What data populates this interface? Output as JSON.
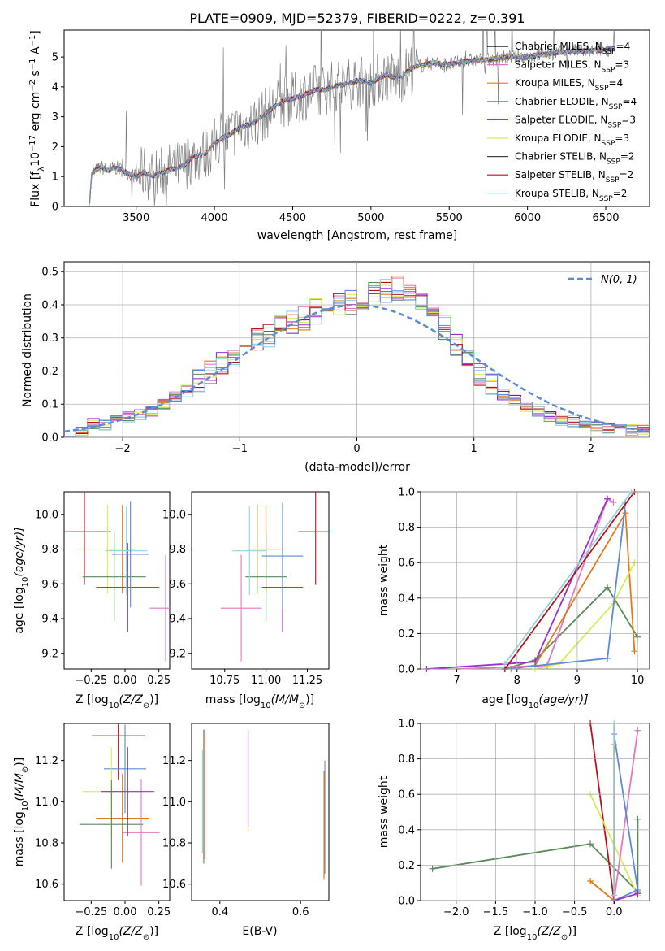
{
  "colors": {
    "Chabrier MILES": "#000000",
    "Salpeter MILES": "#e377c2",
    "Kroupa MILES": "#e07b1a",
    "Chabrier ELODIE": "#5a8a5a",
    "Salpeter ELODIE": "#9b30c8",
    "Kroupa ELODIE": "#d6ec55",
    "Chabrier STELIB": "#444444",
    "Salpeter STELIB": "#b5121b",
    "Kroupa STELIB": "#8fd3e0",
    "model_sum": "#5b8bd6",
    "spectrum": "#808080",
    "normal": "#5b8bd6"
  },
  "chart_data": [
    {
      "type": "line",
      "title": "PLATE=0909, MJD=52379, FIBERID=0222, z=0.391",
      "xlabel": "wavelength [Angstrom, rest frame]",
      "ylabel": "Flux [f",
      "ylabel_parts": [
        "Flux [f",
        "λ",
        "10",
        "−17",
        " erg cm",
        "−2",
        " s",
        "−1",
        " A",
        "−1",
        "]"
      ],
      "xlim": [
        3040,
        6780
      ],
      "ylim": [
        0,
        5.9
      ],
      "xticks": [
        3500,
        4000,
        4500,
        5000,
        5500,
        6000,
        6500
      ],
      "yticks": [
        0,
        1,
        2,
        3,
        4,
        5
      ],
      "legend_placement": "right",
      "legend": [
        {
          "name": "Chabrier MILES",
          "label": "Chabrier MILES, N",
          "sub": "SSP",
          "n": "=4"
        },
        {
          "name": "Salpeter MILES",
          "label": "Salpeter MILES, N",
          "sub": "SSP",
          "n": "=3"
        },
        {
          "name": "Kroupa MILES",
          "label": "Kroupa MILES, N",
          "sub": "SSP",
          "n": "=4"
        },
        {
          "name": "Chabrier ELODIE",
          "label": "Chabrier ELODIE, N",
          "sub": "SSP",
          "n": "=4"
        },
        {
          "name": "Salpeter ELODIE",
          "label": "Salpeter ELODIE, N",
          "sub": "SSP",
          "n": "=3"
        },
        {
          "name": "Kroupa ELODIE",
          "label": "Kroupa ELODIE, N",
          "sub": "SSP",
          "n": "=3"
        },
        {
          "name": "Chabrier STELIB",
          "label": "Chabrier STELIB, N",
          "sub": "SSP",
          "n": "=2"
        },
        {
          "name": "Salpeter STELIB",
          "label": "Salpeter STELIB, N",
          "sub": "SSP",
          "n": "=2"
        },
        {
          "name": "Kroupa STELIB",
          "label": "Kroupa STELIB, N",
          "sub": "SSP",
          "n": "=2"
        }
      ],
      "continuum": {
        "x": [
          3200,
          3215,
          3240,
          3280,
          3320,
          3360,
          3400,
          3450,
          3500,
          3550,
          3600,
          3650,
          3700,
          3750,
          3800,
          3850,
          3900,
          3950,
          4000,
          4050,
          4100,
          4150,
          4200,
          4250,
          4300,
          4350,
          4400,
          4450,
          4500,
          4550,
          4600,
          4650,
          4700,
          4750,
          4800,
          4850,
          4900,
          4950,
          5000,
          5050,
          5100,
          5150,
          5200,
          5250,
          5300,
          5400,
          5500,
          5600,
          5700,
          5800,
          5900,
          6000,
          6100,
          6200,
          6300,
          6400,
          6500,
          6560
        ],
        "y": [
          0,
          1.05,
          1.2,
          1.3,
          1.2,
          1.3,
          1.25,
          1.1,
          1.0,
          1.15,
          1.0,
          1.1,
          1.2,
          1.3,
          1.35,
          1.6,
          1.7,
          1.8,
          2.1,
          2.3,
          2.4,
          2.6,
          2.7,
          2.8,
          3.0,
          3.2,
          3.4,
          3.55,
          3.6,
          3.7,
          3.8,
          3.9,
          3.9,
          4.0,
          4.05,
          4.1,
          4.2,
          4.2,
          4.1,
          4.3,
          4.4,
          4.3,
          4.35,
          4.6,
          4.7,
          4.8,
          4.75,
          4.85,
          4.9,
          4.95,
          5.0,
          5.0,
          5.1,
          5.15,
          5.2,
          5.2,
          5.25,
          5.3
        ]
      }
    },
    {
      "type": "line",
      "xlabel": "(data-model)/error",
      "ylabel": "Normed distribution",
      "xlim": [
        -2.5,
        2.5
      ],
      "ylim": [
        0,
        0.53
      ],
      "xticks": [
        -2,
        -1,
        0,
        1,
        2
      ],
      "yticks": [
        0.0,
        0.1,
        0.2,
        0.3,
        0.4,
        0.5
      ],
      "legend": [
        {
          "name": "normal",
          "label": "N(0, 1)"
        }
      ],
      "grid": true,
      "histogram_centers": [
        -2.45,
        -2.35,
        -2.25,
        -2.15,
        -2.05,
        -1.95,
        -1.85,
        -1.75,
        -1.65,
        -1.55,
        -1.45,
        -1.35,
        -1.25,
        -1.15,
        -1.05,
        -0.95,
        -0.85,
        -0.75,
        -0.65,
        -0.55,
        -0.45,
        -0.35,
        -0.25,
        -0.15,
        -0.05,
        0.05,
        0.15,
        0.25,
        0.35,
        0.45,
        0.55,
        0.65,
        0.75,
        0.85,
        0.95,
        1.05,
        1.15,
        1.25,
        1.35,
        1.45,
        1.55,
        1.65,
        1.75,
        1.85,
        1.95,
        2.05,
        2.15,
        2.25,
        2.35,
        2.45
      ],
      "histogram_values": [
        0.02,
        0.02,
        0.04,
        0.04,
        0.05,
        0.06,
        0.07,
        0.08,
        0.1,
        0.12,
        0.14,
        0.17,
        0.2,
        0.23,
        0.25,
        0.28,
        0.3,
        0.31,
        0.33,
        0.35,
        0.36,
        0.38,
        0.4,
        0.4,
        0.41,
        0.42,
        0.43,
        0.44,
        0.45,
        0.44,
        0.42,
        0.38,
        0.33,
        0.28,
        0.23,
        0.19,
        0.16,
        0.13,
        0.11,
        0.09,
        0.08,
        0.06,
        0.05,
        0.05,
        0.04,
        0.03,
        0.03,
        0.03,
        0.02,
        0.02
      ]
    },
    {
      "type": "scatter",
      "xlabel": "Z [log",
      "xlabel_parts": [
        "Z [log",
        "10",
        "(Z/Z",
        "⊙",
        ")]"
      ],
      "ylabel": "age  [log",
      "ylabel_parts": [
        "age  [log",
        "10",
        "(age/yr)]"
      ],
      "xlim": [
        -0.45,
        0.33
      ],
      "ylim": [
        9.11,
        10.13
      ],
      "xticks": [
        -0.25,
        0.0,
        0.25
      ],
      "xticklabels": [
        "−0.25",
        "0.00",
        "0.25"
      ],
      "yticks": [
        9.2,
        9.4,
        9.6,
        9.8,
        10.0
      ],
      "crosses": [
        {
          "s": "Salpeter STELIB",
          "x": -0.3,
          "y": 9.9,
          "xe": 0.5,
          "ye": 0.6
        },
        {
          "s": "Kroupa ELODIE",
          "x": -0.13,
          "y": 9.8,
          "xe": 0.6,
          "ye": 0.5
        },
        {
          "s": "Kroupa MILES",
          "x": -0.02,
          "y": 9.8,
          "xe": 0.25,
          "ye": 0.5
        },
        {
          "s": "Chabrier ELODIE",
          "x": -0.08,
          "y": 9.64,
          "xe": 0.6,
          "ye": 0.5
        },
        {
          "s": "Salpeter ELODIE",
          "x": 0.02,
          "y": 9.58,
          "xe": 0.6,
          "ye": 0.5
        },
        {
          "s": "Salpeter MILES",
          "x": 0.3,
          "y": 9.46,
          "xe": 0.3,
          "ye": 0.6
        },
        {
          "s": "Kroupa STELIB",
          "x": 0.01,
          "y": 9.79,
          "xe": 0.4,
          "ye": 0.5
        },
        {
          "s": "model_sum",
          "x": 0.04,
          "y": 9.77,
          "xe": 0.35,
          "ye": 0.6
        }
      ]
    },
    {
      "type": "scatter",
      "xlabel": "mass [log",
      "xlabel_parts": [
        "mass [log",
        "10",
        "(M/M",
        "⊙",
        ")]"
      ],
      "xlim": [
        10.55,
        11.38
      ],
      "ylim": [
        9.11,
        10.13
      ],
      "xticks": [
        10.75,
        11.0,
        11.25
      ],
      "xticklabels": [
        "10.75",
        "11.00",
        "11.25"
      ],
      "yticks": [
        9.2,
        9.4,
        9.6,
        9.8,
        10.0
      ],
      "crosses": [
        {
          "s": "Salpeter STELIB",
          "x": 11.3,
          "y": 9.9,
          "xe": 0.25,
          "ye": 0.6
        },
        {
          "s": "Kroupa ELODIE",
          "x": 10.95,
          "y": 9.8,
          "xe": 0.3,
          "ye": 0.5
        },
        {
          "s": "Kroupa MILES",
          "x": 11.0,
          "y": 9.8,
          "xe": 0.25,
          "ye": 0.5
        },
        {
          "s": "Chabrier ELODIE",
          "x": 11.0,
          "y": 9.64,
          "xe": 0.3,
          "ye": 0.5
        },
        {
          "s": "Salpeter ELODIE",
          "x": 11.1,
          "y": 9.58,
          "xe": 0.3,
          "ye": 0.5
        },
        {
          "s": "Salpeter MILES",
          "x": 10.85,
          "y": 9.46,
          "xe": 0.3,
          "ye": 0.6
        },
        {
          "s": "Kroupa STELIB",
          "x": 10.9,
          "y": 9.79,
          "xe": 0.25,
          "ye": 0.5
        },
        {
          "s": "model_sum",
          "x": 11.1,
          "y": 9.76,
          "xe": 0.3,
          "ye": 0.6
        }
      ]
    },
    {
      "type": "line",
      "xlabel": "age  [log",
      "xlabel_parts": [
        "age  [log",
        "10",
        "(age/yr)]"
      ],
      "ylabel": "mass weight",
      "xlim": [
        6.4,
        10.2
      ],
      "ylim": [
        0,
        1
      ],
      "xticks": [
        7,
        8,
        9,
        10
      ],
      "yticks": [
        0.0,
        0.2,
        0.4,
        0.6,
        0.8,
        1.0
      ],
      "grid": true,
      "series": [
        {
          "s": "Chabrier ELODIE",
          "x": [
            7.8,
            8.3,
            9.5,
            10.0
          ],
          "y": [
            0.0,
            0.05,
            0.46,
            0.18
          ]
        },
        {
          "s": "Salpeter MILES",
          "x": [
            7.0,
            8.5,
            9.5,
            9.6
          ],
          "y": [
            0.0,
            0.02,
            0.96,
            0.94
          ]
        },
        {
          "s": "Kroupa MILES",
          "x": [
            7.9,
            8.3,
            9.8,
            9.95
          ],
          "y": [
            0.0,
            0.02,
            0.88,
            0.1
          ]
        },
        {
          "s": "Kroupa ELODIE",
          "x": [
            8.3,
            8.7,
            9.6,
            9.95
          ],
          "y": [
            0.0,
            0.03,
            0.37,
            0.6
          ]
        },
        {
          "s": "Salpeter ELODIE",
          "x": [
            6.5,
            8.3,
            9.5
          ],
          "y": [
            0.0,
            0.04,
            0.96
          ]
        },
        {
          "s": "model_sum",
          "x": [
            7.8,
            9.5,
            9.8
          ],
          "y": [
            0.0,
            0.06,
            0.94
          ]
        },
        {
          "s": "Salpeter STELIB",
          "x": [
            7.8,
            9.95
          ],
          "y": [
            0.0,
            1.0
          ]
        },
        {
          "s": "Kroupa STELIB",
          "x": [
            7.8,
            9.9
          ],
          "y": [
            0.03,
            1.0
          ]
        }
      ]
    },
    {
      "type": "scatter",
      "xlabel": "Z [log",
      "xlabel_parts": [
        "Z [log",
        "10",
        "(Z/Z",
        "⊙",
        ")]"
      ],
      "ylabel": "mass [log",
      "ylabel_parts": [
        "mass [log",
        "10",
        "(M/M",
        "⊙",
        ")]"
      ],
      "xlim": [
        -0.45,
        0.33
      ],
      "ylim": [
        10.52,
        11.38
      ],
      "xticks": [
        -0.25,
        0.0,
        0.25
      ],
      "xticklabels": [
        "−0.25",
        "0.00",
        "0.25"
      ],
      "yticks": [
        10.6,
        10.8,
        11.0,
        11.2
      ],
      "crosses": [
        {
          "s": "Salpeter STELIB",
          "x": -0.05,
          "y": 11.32,
          "xe": 0.5,
          "ye": 0.5
        },
        {
          "s": "model_sum",
          "x": 0.0,
          "y": 11.16,
          "xe": 0.4,
          "ye": 0.5
        },
        {
          "s": "Kroupa ELODIE",
          "x": -0.1,
          "y": 11.05,
          "xe": 0.55,
          "ye": 0.5
        },
        {
          "s": "Kroupa MILES",
          "x": -0.02,
          "y": 10.92,
          "xe": 0.5,
          "ye": 0.5
        },
        {
          "s": "Chabrier ELODIE",
          "x": -0.1,
          "y": 10.89,
          "xe": 0.6,
          "ye": 0.5
        },
        {
          "s": "Salpeter MILES",
          "x": 0.12,
          "y": 10.85,
          "xe": 0.35,
          "ye": 0.6
        },
        {
          "s": "Salpeter ELODIE",
          "x": 0.02,
          "y": 11.05,
          "xe": 0.5,
          "ye": 0.5
        }
      ]
    },
    {
      "type": "scatter",
      "xlabel": "E(B-V)",
      "xlim": [
        0.33,
        0.67
      ],
      "ylim": [
        10.52,
        11.38
      ],
      "xticks": [
        0.4,
        0.6
      ],
      "yticks": [
        10.6,
        10.8,
        11.0,
        11.2
      ],
      "bars": [
        {
          "s": "Kroupa STELIB",
          "x": 0.357,
          "y0": 10.75,
          "y1": 11.25
        },
        {
          "s": "Chabrier ELODIE",
          "x": 0.36,
          "y0": 10.7,
          "y1": 11.35
        },
        {
          "s": "Salpeter STELIB",
          "x": 0.363,
          "y0": 10.72,
          "y1": 11.35
        },
        {
          "s": "Kroupa ELODIE",
          "x": 0.47,
          "y0": 10.85,
          "y1": 11.3
        },
        {
          "s": "Salpeter ELODIE",
          "x": 0.47,
          "y0": 10.88,
          "y1": 11.35
        },
        {
          "s": "model_sum",
          "x": 0.66,
          "y0": 10.65,
          "y1": 11.2
        },
        {
          "s": "Kroupa MILES",
          "x": 0.658,
          "y0": 10.62,
          "y1": 11.15
        }
      ]
    },
    {
      "type": "line",
      "xlabel": "Z [log",
      "xlabel_parts": [
        "Z [log",
        "10",
        "(Z/Z",
        "⊙",
        ")]"
      ],
      "ylabel": "mass weight",
      "xlim": [
        -2.45,
        0.45
      ],
      "ylim": [
        0,
        1
      ],
      "xticks": [
        -2.0,
        -1.5,
        -1.0,
        -0.5,
        0.0
      ],
      "xticklabels": [
        "−2.0",
        "−1.5",
        "−1.0",
        "−0.5",
        "0.0"
      ],
      "yticks": [
        0.0,
        0.2,
        0.4,
        0.6,
        0.8,
        1.0
      ],
      "grid": true,
      "series": [
        {
          "s": "Chabrier ELODIE",
          "x": [
            -2.3,
            -0.3,
            0.3,
            0.3,
            0.3
          ],
          "y": [
            0.18,
            0.32,
            0.05,
            0.46,
            0.04
          ]
        },
        {
          "s": "Salpeter STELIB",
          "x": [
            -0.3,
            0.0
          ],
          "y": [
            1.0,
            0.0
          ]
        },
        {
          "s": "Kroupa ELODIE",
          "x": [
            -0.3,
            0.3
          ],
          "y": [
            0.6,
            0.03
          ]
        },
        {
          "s": "Salpeter MILES",
          "x": [
            0.0,
            0.3
          ],
          "y": [
            0.0,
            0.96
          ]
        },
        {
          "s": "Kroupa MILES",
          "x": [
            -0.3,
            0.0,
            0.0
          ],
          "y": [
            0.11,
            0.0,
            0.88
          ]
        },
        {
          "s": "model_sum",
          "x": [
            0.0,
            0.3,
            0.0
          ],
          "y": [
            0.0,
            0.06,
            0.94
          ]
        },
        {
          "s": "Kroupa STELIB",
          "x": [
            0.0,
            0.0
          ],
          "y": [
            0.03,
            1.0
          ]
        },
        {
          "s": "Salpeter ELODIE",
          "x": [
            0.0,
            0.3
          ],
          "y": [
            0.0,
            0.04
          ]
        }
      ]
    }
  ]
}
